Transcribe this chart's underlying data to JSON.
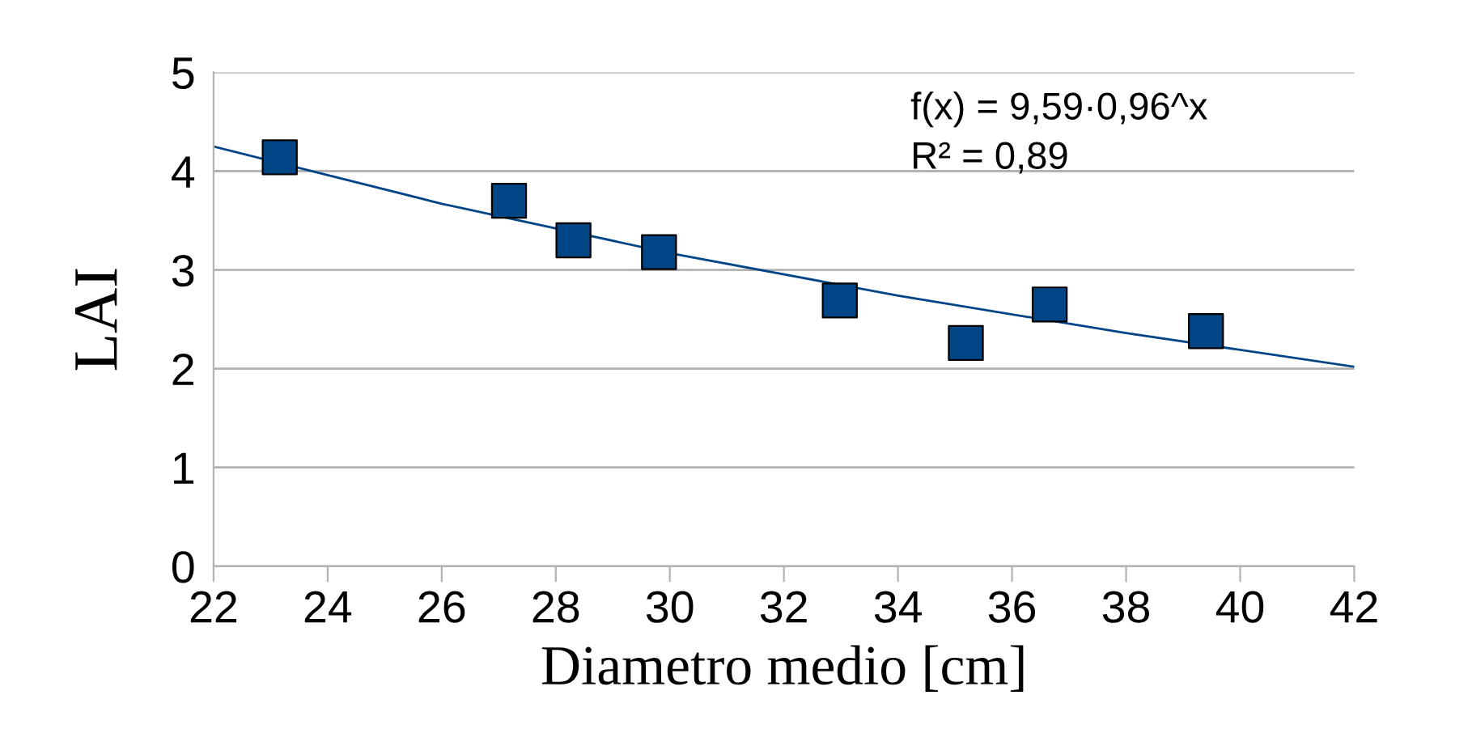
{
  "chart_data": {
    "type": "scatter",
    "xlabel": "Diametro medio [cm]",
    "ylabel": "LAI",
    "annotations": [
      "f(x) = 9,59·0,96^x",
      "R² = 0,89"
    ],
    "series": [
      {
        "color": "#004586",
        "marker": "square",
        "x": [
          23.16,
          27.18,
          28.31,
          29.81,
          32.98,
          35.19,
          36.66,
          39.4
        ],
        "values": [
          4.14,
          3.7,
          3.3,
          3.18,
          2.69,
          2.26,
          2.65,
          2.38
        ]
      },
      {
        "type": "line",
        "color": "#004586",
        "marker": "none",
        "x": [
          22,
          26,
          30,
          34,
          38,
          42
        ],
        "values": [
          4.25,
          3.67,
          3.17,
          2.74,
          2.36,
          2.02
        ]
      }
    ],
    "xlim": [
      22,
      42
    ],
    "xticks": [
      22,
      24,
      26,
      28,
      30,
      32,
      34,
      36,
      38,
      40,
      42
    ],
    "ylim": [
      0,
      5
    ],
    "yticks": [
      0,
      1,
      2,
      3,
      4,
      5
    ],
    "grid": "y",
    "legend": false
  }
}
